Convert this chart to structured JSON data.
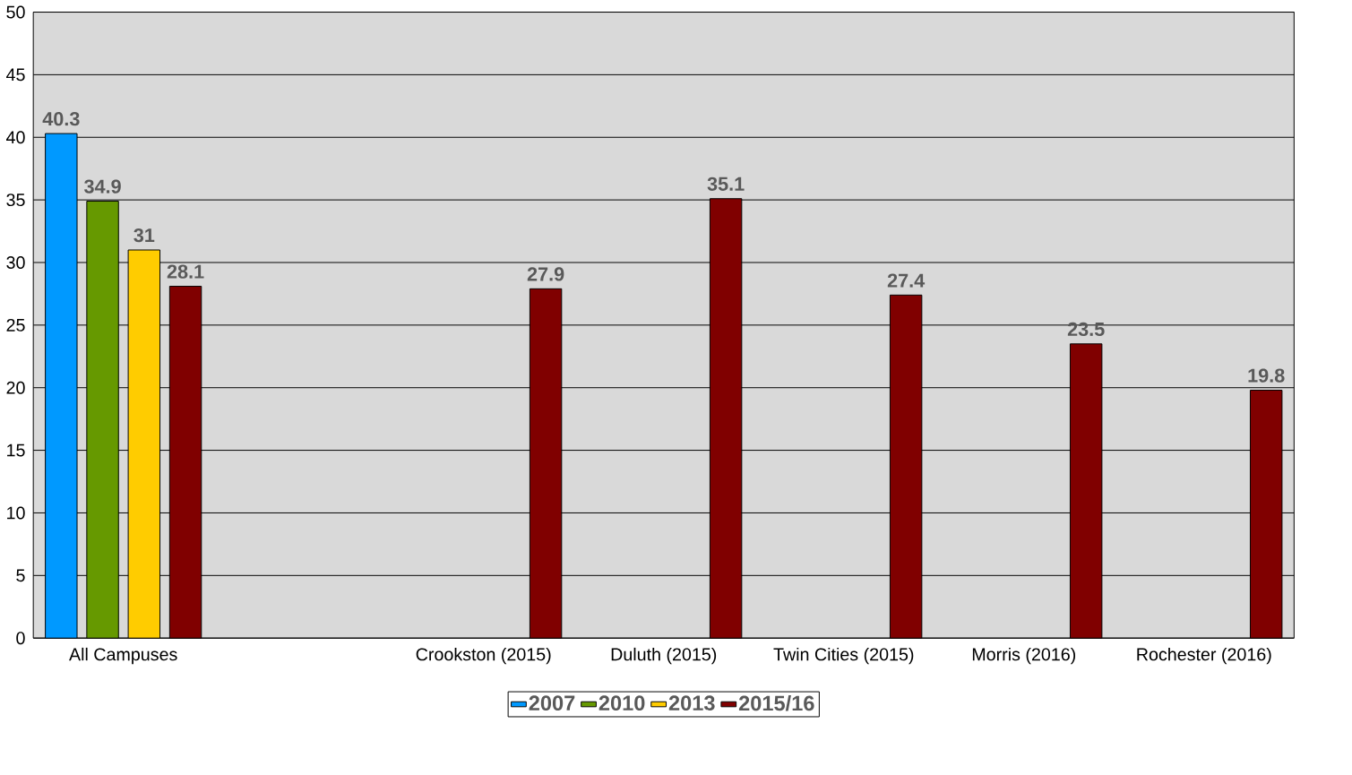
{
  "chart_data": {
    "type": "bar",
    "categories": [
      "All Campuses",
      null,
      "Crookston (2015)",
      "Duluth (2015)",
      "Twin Cities (2015)",
      "Morris (2016)",
      "Rochester (2016)"
    ],
    "series": [
      {
        "name": "2007",
        "color": "#0099ff",
        "values": [
          40.3,
          null,
          null,
          null,
          null,
          null,
          null
        ]
      },
      {
        "name": "2010",
        "color": "#669900",
        "values": [
          34.9,
          null,
          null,
          null,
          null,
          null,
          null
        ]
      },
      {
        "name": "2013",
        "color": "#ffcc00",
        "values": [
          31,
          null,
          null,
          null,
          null,
          null,
          null
        ]
      },
      {
        "name": "2015/16",
        "color": "#800000",
        "values": [
          28.1,
          null,
          27.9,
          35.1,
          27.4,
          23.5,
          19.8
        ]
      }
    ],
    "ylim": [
      0,
      50
    ],
    "yticks": [
      0,
      5,
      10,
      15,
      20,
      25,
      30,
      35,
      40,
      45,
      50
    ],
    "grid": "y",
    "legend": "bottom",
    "data_labels": true
  }
}
